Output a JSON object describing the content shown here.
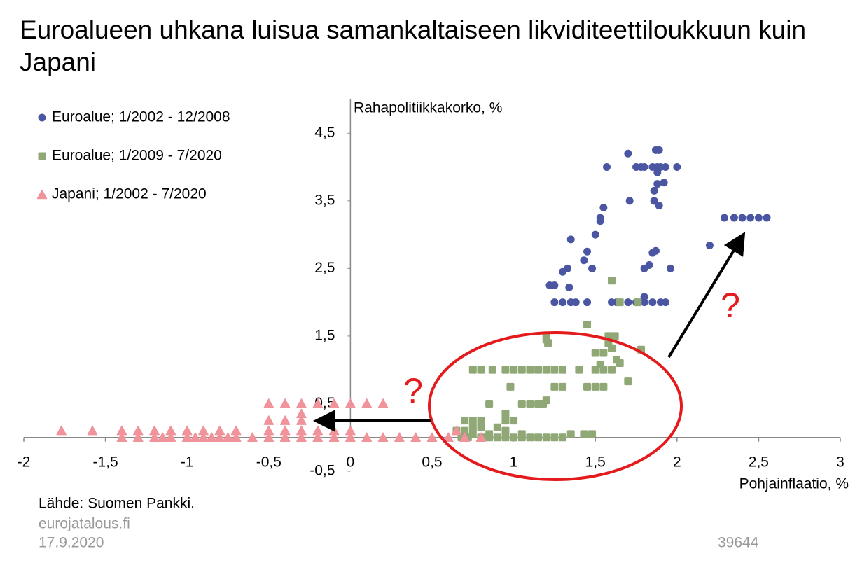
{
  "chart_data": {
    "type": "scatter",
    "title": "Euroalueen uhkana luisua samankaltaiseen likviditeettiloukkuun kuin Japani",
    "x_label": "Pohjainflaatio, %",
    "y_label": "Rahapolitiikkakorko, %",
    "xlim": [
      -2,
      3
    ],
    "ylim": [
      -0.5,
      5
    ],
    "xticks": [
      -2,
      {
        "value": -1.5,
        "label": "-1,5"
      },
      -1,
      {
        "value": -0.5,
        "label": "-0,5"
      },
      0,
      {
        "value": 0.5,
        "label": "0,5"
      },
      1,
      {
        "value": 1.5,
        "label": "1,5"
      },
      2,
      {
        "value": 2.5,
        "label": "2,5"
      },
      3
    ],
    "yticks": [
      {
        "value": -0.5,
        "label": "-0,5"
      },
      {
        "value": 0.5,
        "label": "0,5"
      },
      {
        "value": 1.5,
        "label": "1,5"
      },
      {
        "value": 2.5,
        "label": "2,5"
      },
      {
        "value": 3.5,
        "label": "3,5"
      },
      {
        "value": 4.5,
        "label": "4,5"
      }
    ],
    "legend": "top-left",
    "series": [
      {
        "name": "Euroalue; 1/2002 - 12/2008",
        "color": "#4b56a3",
        "marker": "circle",
        "x": [
          1.7,
          1.87,
          1.89,
          1.57,
          1.75,
          1.78,
          1.8,
          1.85,
          1.88,
          1.9,
          1.93,
          2.0,
          1.88,
          1.92,
          1.88,
          1.86,
          1.71,
          1.86,
          1.89,
          1.55,
          1.53,
          1.53,
          1.5,
          1.35,
          2.29,
          2.35,
          2.4,
          2.45,
          2.5,
          2.55,
          2.2,
          1.87,
          1.85,
          1.45,
          1.43,
          1.33,
          1.3,
          1.48,
          1.8,
          1.96,
          1.83,
          1.22,
          1.25,
          1.34,
          1.25,
          1.3,
          1.35,
          1.38,
          1.45,
          1.6,
          1.63,
          1.7,
          1.75,
          1.8,
          1.85,
          1.9,
          1.93,
          1.8
        ],
        "values": [
          4.2,
          4.25,
          4.25,
          4.0,
          4.0,
          4.0,
          4.0,
          4.0,
          4.0,
          4.0,
          4.0,
          4.0,
          3.92,
          3.77,
          3.75,
          3.65,
          3.5,
          3.5,
          3.43,
          3.4,
          3.25,
          3.2,
          3.0,
          2.93,
          3.25,
          3.25,
          3.25,
          3.25,
          3.25,
          3.25,
          2.84,
          2.76,
          2.73,
          2.75,
          2.62,
          2.5,
          2.45,
          2.5,
          2.5,
          2.5,
          2.55,
          2.25,
          2.25,
          2.22,
          2.0,
          2.0,
          2.0,
          2.0,
          2.0,
          2.0,
          2.0,
          2.0,
          2.0,
          2.0,
          2.0,
          2.0,
          2.0,
          2.08
        ]
      },
      {
        "name": "Euroalue; 1/2009 - 7/2020",
        "color": "#8fa876",
        "marker": "square",
        "x": [
          1.6,
          1.65,
          1.76,
          1.45,
          1.2,
          1.2,
          1.21,
          1.58,
          1.62,
          1.58,
          1.6,
          1.5,
          1.55,
          1.78,
          1.53,
          1.63,
          1.65,
          0.75,
          0.8,
          0.87,
          0.95,
          1.0,
          1.05,
          1.1,
          1.15,
          1.2,
          1.25,
          1.3,
          1.4,
          1.5,
          1.55,
          1.6,
          0.98,
          1.25,
          1.3,
          1.45,
          1.5,
          1.55,
          1.7,
          1.05,
          1.1,
          1.15,
          1.18,
          1.2,
          0.85,
          0.95,
          0.95,
          1.0,
          0.7,
          0.75,
          0.8,
          0.8,
          0.75,
          0.9,
          0.65,
          0.7,
          0.75,
          0.85,
          0.95,
          1.05,
          0.68,
          0.72,
          0.8,
          0.85,
          0.9,
          0.95,
          1.0,
          1.05,
          1.1,
          1.15,
          1.2,
          1.25,
          1.3,
          1.35,
          1.43,
          1.48
        ],
        "values": [
          2.32,
          2.0,
          2.0,
          1.67,
          1.5,
          1.45,
          1.4,
          1.5,
          1.5,
          1.4,
          1.32,
          1.25,
          1.25,
          1.3,
          1.08,
          1.15,
          1.1,
          1.0,
          1.0,
          1.0,
          1.0,
          1.0,
          1.0,
          1.0,
          1.0,
          1.0,
          1.0,
          1.0,
          1.0,
          1.0,
          1.0,
          1.0,
          0.75,
          0.75,
          0.75,
          0.75,
          0.75,
          0.75,
          0.83,
          0.5,
          0.5,
          0.5,
          0.5,
          0.55,
          0.5,
          0.35,
          0.25,
          0.25,
          0.25,
          0.25,
          0.25,
          0.15,
          0.15,
          0.15,
          0.1,
          0.1,
          0.05,
          0.05,
          0.1,
          0.05,
          0,
          0,
          0,
          0,
          0,
          0,
          0,
          0,
          0,
          0,
          0,
          0,
          0,
          0.05,
          0.05,
          0.05
        ]
      },
      {
        "name": "Japani; 1/2002 - 7/2020",
        "color": "#f0939a",
        "marker": "triangle",
        "x": [
          -1.77,
          -1.58,
          -1.4,
          -1.3,
          -1.2,
          -1.1,
          -1.0,
          -0.9,
          -0.8,
          -0.7,
          -0.5,
          -0.4,
          -0.3,
          -0.2,
          -0.1,
          0,
          0.1,
          0.2,
          -0.5,
          -0.4,
          -0.3,
          -0.3,
          -0.5,
          -0.4,
          -0.3,
          -0.2,
          -0.1,
          0,
          0.65,
          -1.4,
          -1.3,
          -1.2,
          -1.15,
          -1.1,
          -1.0,
          -0.95,
          -0.9,
          -0.85,
          -0.8,
          -0.75,
          -0.7,
          -0.6,
          -0.5,
          -0.4,
          -0.3,
          -0.2,
          -0.1,
          0,
          0.1,
          0.2,
          0.3,
          0.4,
          0.5,
          0.6,
          0.7,
          0.8
        ],
        "values": [
          0.1,
          0.1,
          0.1,
          0.1,
          0.1,
          0.1,
          0.1,
          0.1,
          0.1,
          0.1,
          0.5,
          0.5,
          0.5,
          0.5,
          0.5,
          0.5,
          0.5,
          0.5,
          0.25,
          0.25,
          0.25,
          0.35,
          0.1,
          0.1,
          0.1,
          0.1,
          0.1,
          0.1,
          0.1,
          0,
          0,
          0,
          0,
          0,
          0,
          0,
          0,
          0,
          0,
          0,
          0,
          0,
          0,
          0,
          0,
          0,
          0,
          0,
          0,
          0,
          0,
          0,
          0,
          0,
          0,
          0
        ]
      }
    ],
    "annotations": [
      "?",
      "?"
    ],
    "source": "Lähde: Suomen Pankki.",
    "site": "eurojatalous.fi",
    "date": "17.9.2020",
    "chart_id": "39644"
  }
}
